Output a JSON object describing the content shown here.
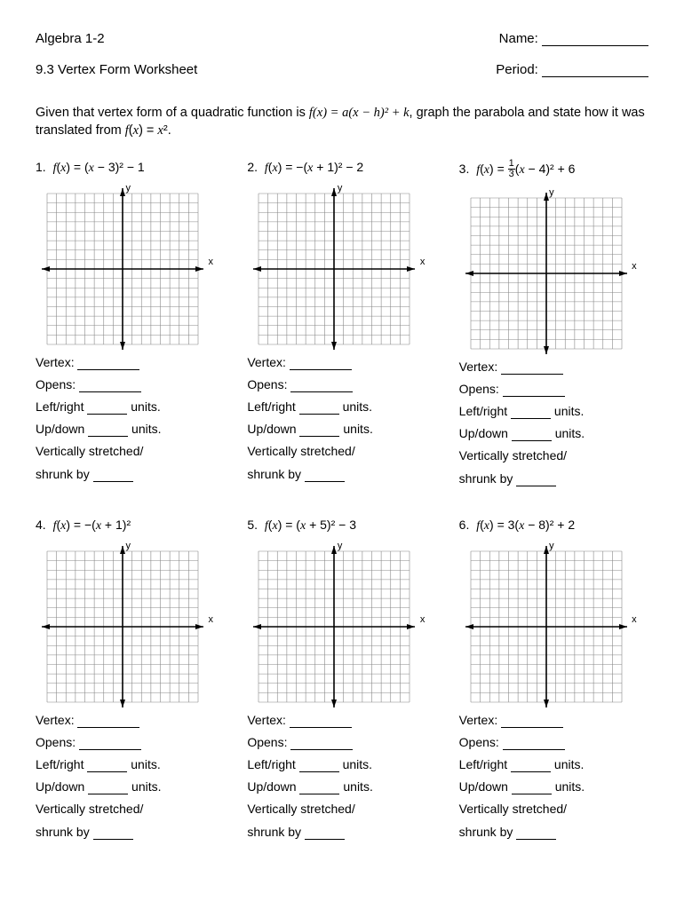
{
  "header": {
    "course": "Algebra 1-2",
    "nameLabel": "Name:",
    "title": "9.3 Vertex Form Worksheet",
    "periodLabel": "Period:"
  },
  "instructions": {
    "prefix": "Given that vertex form of a quadratic function is ",
    "formula": "f(x) = a(x − h)² + k",
    "middle": ", graph the parabola and state how it was translated from ",
    "base": "f(x) = x²",
    "suffix": "."
  },
  "graph": {
    "size": 170,
    "cells": 16,
    "gridColor": "#888888",
    "axisColor": "#000000",
    "lineWidth": 0.6,
    "axisWidth": 1.6,
    "arrowSize": 7,
    "xLabel": "x",
    "yLabel": "y"
  },
  "answerLabels": {
    "vertex": "Vertex:",
    "opens": "Opens:",
    "leftright_a": "Left/right",
    "leftright_b": "units.",
    "updown_a": "Up/down",
    "updown_b": "units.",
    "stretch1": "Vertically stretched/",
    "stretch2": "shrunk by"
  },
  "problems": [
    {
      "num": "1.",
      "eq_html": "<span class='mi'>f</span>(<span class='mi'>x</span>) = (<span class='mi'>x</span> − 3)² − 1"
    },
    {
      "num": "2.",
      "eq_html": "<span class='mi'>f</span>(<span class='mi'>x</span>) = −(<span class='mi'>x</span> + 1)² − 2"
    },
    {
      "num": "3.",
      "eq_html": "<span class='mi'>f</span>(<span class='mi'>x</span>) = <span class='frac'><span class='n'>1</span><span class='d'>3</span></span>(<span class='mi'>x</span> − 4)² + 6"
    },
    {
      "num": "4.",
      "eq_html": "<span class='mi'>f</span>(<span class='mi'>x</span>) = −(<span class='mi'>x</span> + 1)²"
    },
    {
      "num": "5.",
      "eq_html": "<span class='mi'>f</span>(<span class='mi'>x</span>) = (<span class='mi'>x</span> + 5)² − 3"
    },
    {
      "num": "6.",
      "eq_html": "<span class='mi'>f</span>(<span class='mi'>x</span>) = 3(<span class='mi'>x</span> − 8)² + 2"
    }
  ]
}
